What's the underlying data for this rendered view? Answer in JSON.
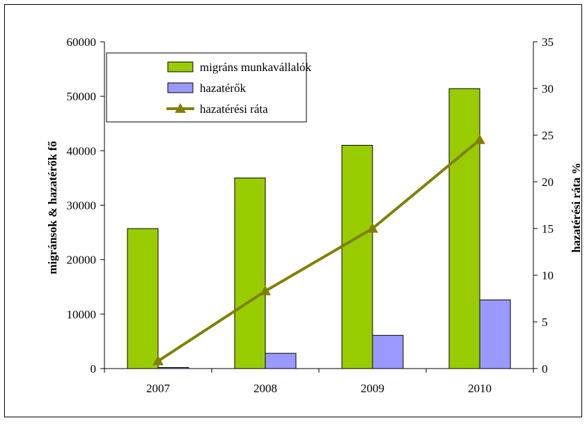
{
  "chart_data": {
    "type": "bar",
    "categories": [
      "2007",
      "2008",
      "2009",
      "2010"
    ],
    "series": [
      {
        "name": "migráns munkavállalók",
        "type": "bar",
        "axis": "left",
        "color": "#99cc00",
        "values": [
          25700,
          35000,
          41000,
          51400
        ]
      },
      {
        "name": "hazatérők",
        "type": "bar",
        "axis": "left",
        "color": "#9999ff",
        "values": [
          200,
          2800,
          6100,
          12600
        ]
      },
      {
        "name": "hazatérési ráta",
        "type": "line",
        "axis": "right",
        "color": "#808000",
        "marker": "triangle",
        "values": [
          0.8,
          8.3,
          15.0,
          24.5
        ]
      }
    ],
    "y_left": {
      "label": "migránsok & hazatérők fő",
      "min": 0,
      "max": 60000,
      "step": 10000,
      "ticks": [
        "0",
        "10000",
        "20000",
        "30000",
        "40000",
        "50000",
        "60000"
      ]
    },
    "y_right": {
      "label": "hazatérési ráta  %",
      "min": 0,
      "max": 35,
      "step": 5,
      "ticks": [
        "0",
        "5",
        "10",
        "15",
        "20",
        "25",
        "30",
        "35"
      ]
    },
    "grid": false,
    "legend_position": "top-left"
  }
}
